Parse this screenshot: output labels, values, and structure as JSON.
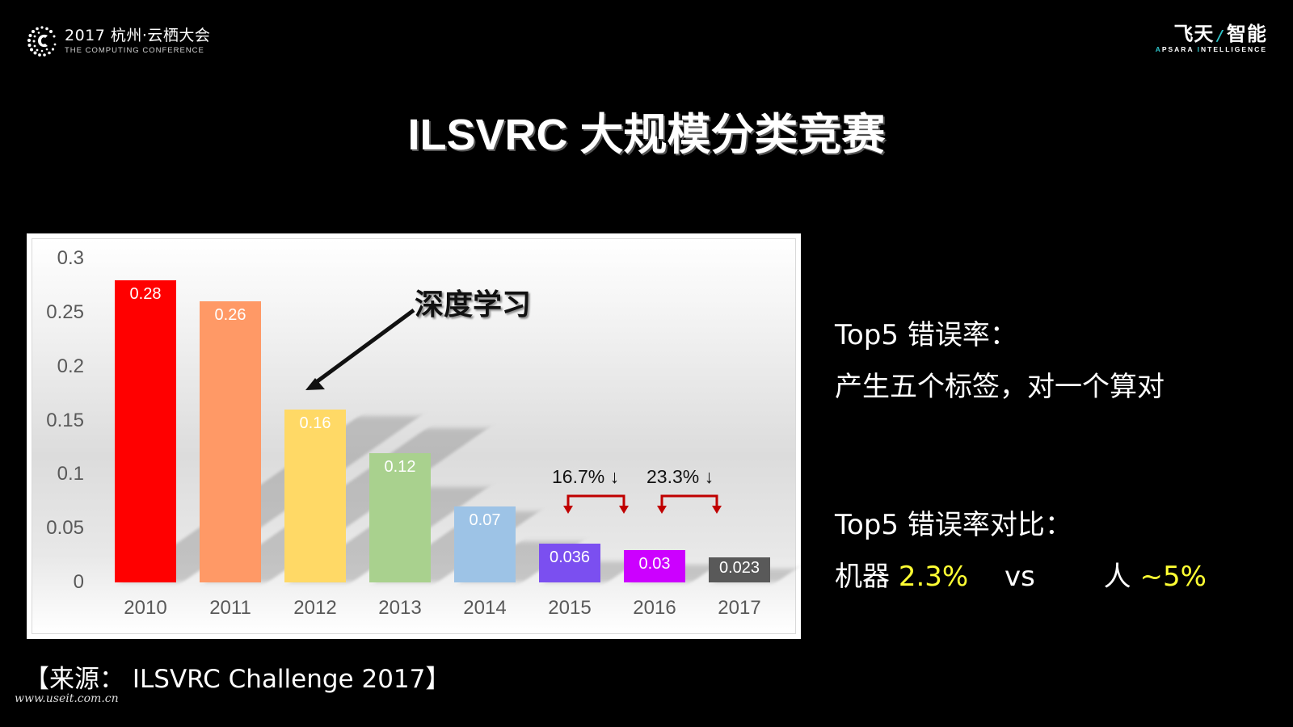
{
  "header": {
    "left_logo": {
      "icon": "computing-conference-dots-c-icon",
      "title": "2017 杭州·云栖大会",
      "subtitle": "THE COMPUTING CONFERENCE"
    },
    "right_logo": {
      "title_part1": "飞天",
      "slash": "/",
      "title_part2": "智能",
      "subtitle_cap1": "A",
      "subtitle_rest1": "PSARA ",
      "subtitle_cap2": "I",
      "subtitle_rest2": "NTELLIGENCE",
      "accent_color": "#2ec4c9"
    }
  },
  "page_title": "ILSVRC 大规模分类竞赛",
  "chart_data": {
    "type": "bar",
    "title": "ILSVRC 大规模分类竞赛",
    "xlabel": "",
    "ylabel": "",
    "categories": [
      "2010",
      "2011",
      "2012",
      "2013",
      "2014",
      "2015",
      "2016",
      "2017"
    ],
    "values": [
      0.28,
      0.26,
      0.16,
      0.12,
      0.07,
      0.036,
      0.03,
      0.023
    ],
    "value_labels": [
      "0.28",
      "0.26",
      "0.16",
      "0.12",
      "0.07",
      "0.036",
      "0.03",
      "0.023"
    ],
    "bar_colors": [
      "#ff0000",
      "#ff9966",
      "#ffd966",
      "#a9d18e",
      "#9dc3e6",
      "#7b4ff0",
      "#cc00ff",
      "#595959"
    ],
    "ylim": [
      0,
      0.3
    ],
    "y_ticks": [
      "0",
      "0.05",
      "0.1",
      "0.15",
      "0.2",
      "0.25",
      "0.3"
    ],
    "grid": false,
    "legend": null,
    "annotations": [
      {
        "text": "深度学习",
        "points_to": "2012",
        "arrow": true
      },
      {
        "text": "16.7% ↓",
        "from": "2015",
        "to": "2016"
      },
      {
        "text": "23.3% ↓",
        "from": "2016",
        "to": "2017"
      }
    ]
  },
  "annotations": {
    "deep_learning": "深度学习",
    "drop_2015_2016": "16.7% ↓",
    "drop_2016_2017": "23.3% ↓",
    "bracket_color": "#c00000"
  },
  "side_panel": {
    "line1": "Top5 错误率：",
    "line2": "产生五个标签，对一个算对",
    "line3": "Top5 错误率对比：",
    "machine_label": "机器",
    "machine_value": "2.3%",
    "vs": "vs",
    "human_label": "人",
    "human_value": "~5%",
    "highlight_color": "#ffff33"
  },
  "source_note": "【来源： ILSVRC Challenge 2017】",
  "watermark": "www.useit.com.cn"
}
